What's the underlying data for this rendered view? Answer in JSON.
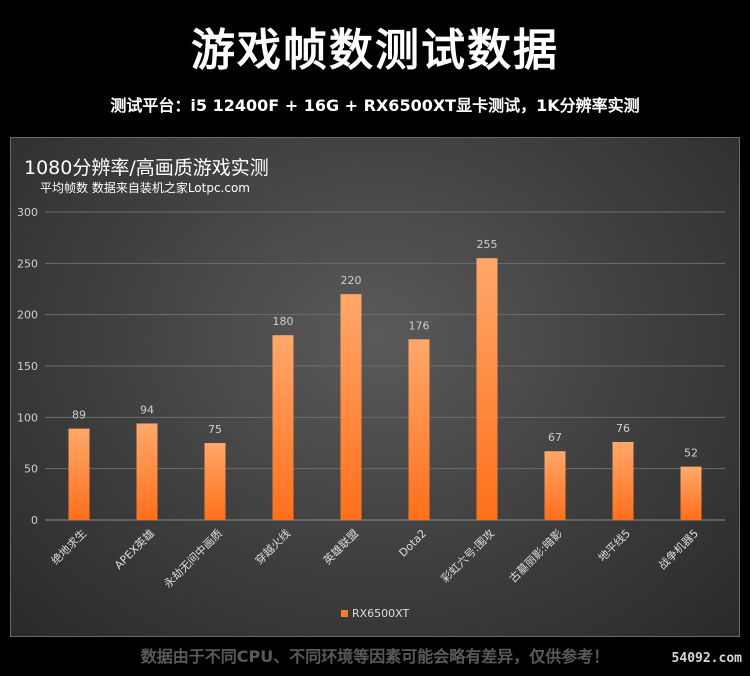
{
  "header": {
    "title": "游戏帧数测试数据",
    "subtitle": "测试平台：i5 12400F + 16G + RX6500XT显卡测试，1K分辨率实测"
  },
  "footer": {
    "note": "数据由于不同CPU、不同环境等因素可能会略有差异，仅供参考！",
    "watermark": "54092.com"
  },
  "colors": {
    "bar_top": "#ffa86a",
    "bar_bottom": "#ff6f1a",
    "legend_swatch": "#ff7a2a"
  },
  "chart_data": {
    "type": "bar",
    "title": "1080分辨率/高画质游戏实测",
    "subtitle": "平均帧数 数据来自装机之家Lotpc.com",
    "categories": [
      "绝地求生",
      "APEX英雄",
      "永劫无间中画质",
      "穿越火线",
      "英雄联盟",
      "Dota2",
      "彩虹六号:围攻",
      "古墓丽影:暗影",
      "地平线5",
      "战争机器5"
    ],
    "series": [
      {
        "name": "RX6500XT",
        "values": [
          89,
          94,
          75,
          180,
          220,
          176,
          255,
          67,
          76,
          52
        ]
      }
    ],
    "yticks": [
      0,
      50,
      100,
      150,
      200,
      250,
      300
    ],
    "ylim": [
      0,
      300
    ],
    "grid": true,
    "legend_position": "bottom-center"
  }
}
